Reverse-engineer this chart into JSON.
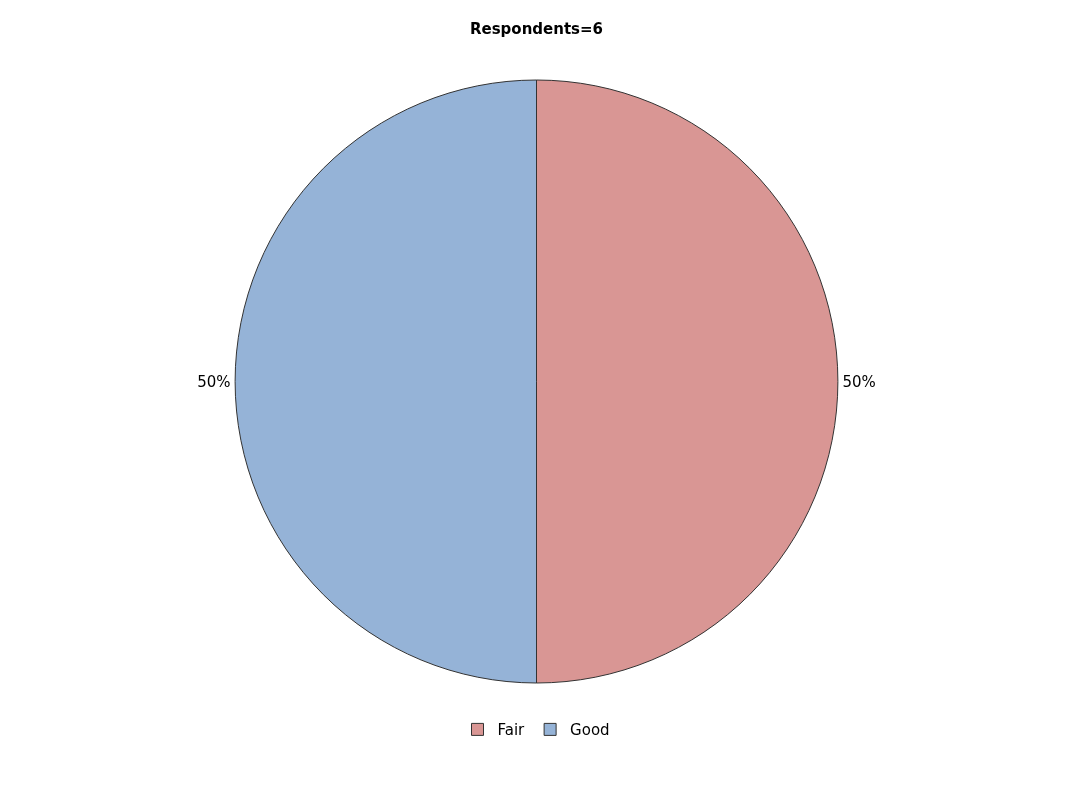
{
  "chart_data": {
    "type": "pie",
    "title": "Respondents=6",
    "categories": [
      "Fair",
      "Good"
    ],
    "values": [
      50,
      50
    ],
    "colors": [
      "#d99694",
      "#95b3d7"
    ],
    "value_labels": [
      "50%",
      "50%"
    ],
    "legend": "bottom"
  }
}
